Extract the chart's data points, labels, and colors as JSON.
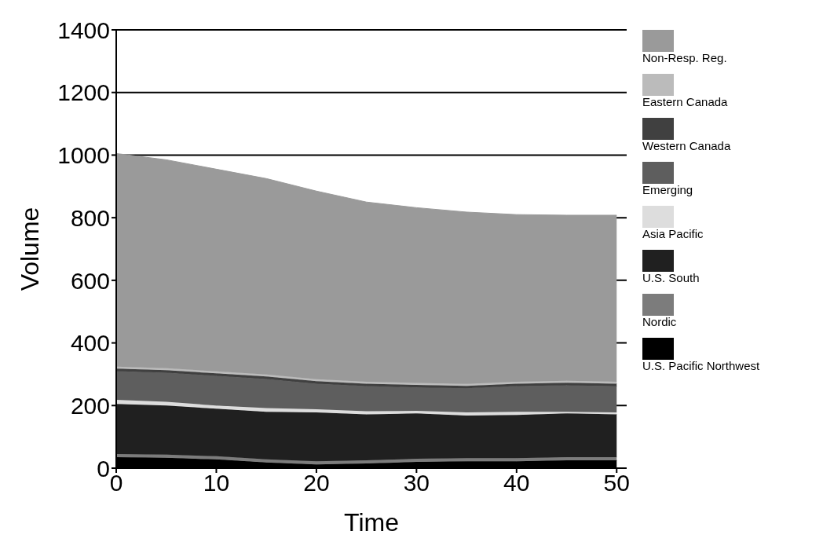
{
  "chart_data": {
    "type": "area",
    "stacked": true,
    "xlabel": "Time",
    "ylabel": "Volume",
    "x": [
      0,
      5,
      10,
      15,
      20,
      25,
      30,
      35,
      40,
      45,
      50
    ],
    "xlim": [
      0,
      51
    ],
    "xticks": [
      0,
      10,
      20,
      30,
      40,
      50
    ],
    "ylim": [
      0,
      1400
    ],
    "yticks": [
      0,
      200,
      400,
      600,
      800,
      1000,
      1200,
      1400
    ],
    "grid": "y",
    "legend": "right",
    "series": [
      {
        "name": "U.S. Pacific Northwest",
        "color": "#000000",
        "values": [
          35,
          33,
          28,
          18,
          12,
          15,
          20,
          22,
          22,
          25,
          25
        ]
      },
      {
        "name": "Nordic",
        "color": "#7c7c7c",
        "values": [
          10,
          10,
          10,
          10,
          10,
          10,
          10,
          10,
          10,
          10,
          10
        ]
      },
      {
        "name": "U.S. South",
        "color": "#202020",
        "values": [
          160,
          157,
          152,
          152,
          156,
          147,
          145,
          136,
          138,
          140,
          137
        ]
      },
      {
        "name": "Asia Pacific",
        "color": "#dddddd",
        "values": [
          13,
          12,
          10,
          12,
          10,
          10,
          8,
          10,
          10,
          5,
          6
        ]
      },
      {
        "name": "Emerging",
        "color": "#5e5e5e",
        "values": [
          92,
          93,
          95,
          93,
          82,
          80,
          75,
          77,
          82,
          85,
          84
        ]
      },
      {
        "name": "Western Canada",
        "color": "#404040",
        "values": [
          8,
          8,
          8,
          8,
          8,
          8,
          8,
          8,
          8,
          8,
          8
        ]
      },
      {
        "name": "Eastern Canada",
        "color": "#bbbbbb",
        "values": [
          6,
          6,
          6,
          6,
          6,
          6,
          6,
          6,
          6,
          6,
          6
        ]
      },
      {
        "name": "Non-Resp. Reg.",
        "color": "#9a9a9a",
        "values": [
          681,
          666,
          646,
          626,
          601,
          574,
          560,
          549,
          534,
          529,
          532
        ]
      }
    ]
  }
}
